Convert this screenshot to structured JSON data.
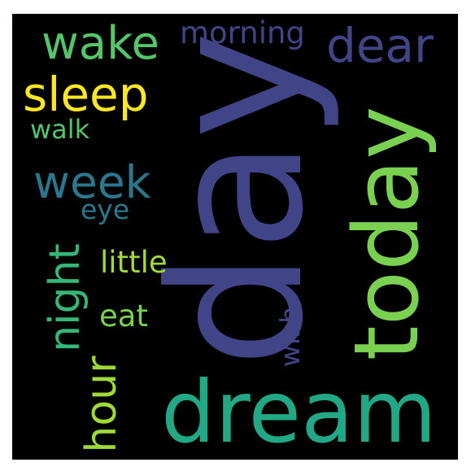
{
  "wordcloud": {
    "background": "#000000",
    "words": {
      "day": {
        "text": "day",
        "color": "#414487"
      },
      "today": {
        "text": "today",
        "color": "#7ad151"
      },
      "dream": {
        "text": "dream",
        "color": "#22a884"
      },
      "dear": {
        "text": "dear",
        "color": "#414487"
      },
      "wake": {
        "text": "wake",
        "color": "#54c568"
      },
      "morning": {
        "text": "morning",
        "color": "#414487"
      },
      "sleep": {
        "text": "sleep",
        "color": "#fde725"
      },
      "walk": {
        "text": "walk",
        "color": "#54c568"
      },
      "week": {
        "text": "week",
        "color": "#2a788e"
      },
      "eye": {
        "text": "eye",
        "color": "#2a788e"
      },
      "night": {
        "text": "night",
        "color": "#35b779"
      },
      "little": {
        "text": "little",
        "color": "#a0da39"
      },
      "eat": {
        "text": "eat",
        "color": "#7ad151"
      },
      "hour": {
        "text": "hour",
        "color": "#a0da39"
      },
      "wish": {
        "text": "wish",
        "color": "#414487"
      }
    }
  }
}
